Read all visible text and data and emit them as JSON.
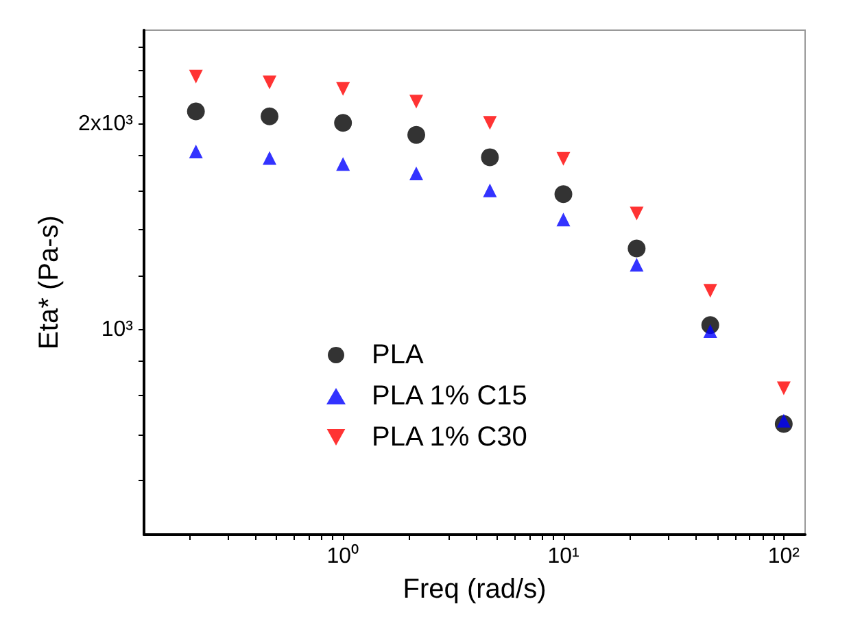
{
  "chart_data": {
    "type": "scatter",
    "xlabel": "Freq (rad/s)",
    "ylabel": "Eta* (Pa-s)",
    "log": "xy",
    "x": [
      0.215,
      0.464,
      1,
      2.15,
      4.64,
      10,
      21.5,
      46.4,
      100
    ],
    "series": [
      {
        "name": "PLA",
        "color": "#000000",
        "marker": "circle",
        "values": [
          2090,
          2055,
          2010,
          1930,
          1790,
          1580,
          1315,
          1015,
          727
        ]
      },
      {
        "name": "PLA 1% C15",
        "color": "#0000ff",
        "marker": "triangle",
        "values": [
          1825,
          1785,
          1750,
          1695,
          1600,
          1450,
          1245,
          995,
          735
        ]
      },
      {
        "name": "PLA 1% C30",
        "color": "#ff0000",
        "marker": "triangle-down",
        "values": [
          2350,
          2305,
          2255,
          2160,
          2010,
          1780,
          1480,
          1140,
          820
        ]
      }
    ],
    "xlim": [
      0.125,
      125
    ],
    "xticks": [
      {
        "value": 0.2,
        "label": null
      },
      {
        "value": 0.3,
        "label": null
      },
      {
        "value": 0.4,
        "label": null
      },
      {
        "value": 0.5,
        "label": null
      },
      {
        "value": 0.6,
        "label": null
      },
      {
        "value": 0.7,
        "label": null
      },
      {
        "value": 0.8,
        "label": null
      },
      {
        "value": 0.9,
        "label": null
      },
      {
        "value": 1,
        "label": "10⁰"
      },
      {
        "value": 2,
        "label": null
      },
      {
        "value": 3,
        "label": null
      },
      {
        "value": 4,
        "label": null
      },
      {
        "value": 5,
        "label": null
      },
      {
        "value": 6,
        "label": null
      },
      {
        "value": 7,
        "label": null
      },
      {
        "value": 8,
        "label": null
      },
      {
        "value": 9,
        "label": null
      },
      {
        "value": 10,
        "label": "10¹"
      },
      {
        "value": 20,
        "label": null
      },
      {
        "value": 30,
        "label": null
      },
      {
        "value": 40,
        "label": null
      },
      {
        "value": 50,
        "label": null
      },
      {
        "value": 60,
        "label": null
      },
      {
        "value": 70,
        "label": null
      },
      {
        "value": 80,
        "label": null
      },
      {
        "value": 90,
        "label": null
      },
      {
        "value": 100,
        "label": "10²"
      }
    ],
    "ylim": [
      500,
      2750
    ],
    "yticks": [
      {
        "value": 600,
        "label": null
      },
      {
        "value": 700,
        "label": null
      },
      {
        "value": 800,
        "label": null
      },
      {
        "value": 900,
        "label": null
      },
      {
        "value": 1000,
        "label": "10³"
      },
      {
        "value": 1200,
        "label": null
      },
      {
        "value": 1400,
        "label": null
      },
      {
        "value": 1600,
        "label": null
      },
      {
        "value": 1800,
        "label": null
      },
      {
        "value": 2000,
        "label": "2x10³"
      },
      {
        "value": 2200,
        "label": null
      },
      {
        "value": 2400,
        "label": null
      },
      {
        "value": 2600,
        "label": null
      }
    ],
    "grid": false,
    "legend": "bottom left"
  }
}
